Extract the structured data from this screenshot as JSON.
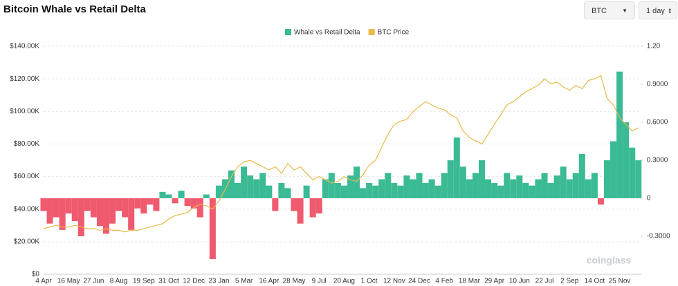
{
  "controls": {
    "symbol": "BTC",
    "interval": "1 day"
  },
  "watermark": "coinglass",
  "chart_data": {
    "type": "bar-line",
    "title": "Bitcoin Whale vs Retail Delta",
    "grid": true,
    "legend": "top",
    "categories": [
      "4 Apr",
      null,
      null,
      null,
      "16 May",
      null,
      null,
      null,
      "27 Jun",
      null,
      null,
      null,
      "8 Aug",
      null,
      null,
      null,
      "19 Sep",
      null,
      null,
      null,
      "31 Oct",
      null,
      null,
      null,
      "12 Dec",
      null,
      null,
      null,
      "23 Jan",
      null,
      null,
      null,
      "5 Mar",
      null,
      null,
      null,
      "16 Apr",
      null,
      null,
      null,
      "28 May",
      null,
      null,
      null,
      "9 Jul",
      null,
      null,
      null,
      "20 Aug",
      null,
      null,
      null,
      "1 Oct",
      null,
      null,
      null,
      "12 Nov",
      null,
      null,
      null,
      "24 Dec",
      null,
      null,
      null,
      "4 Feb",
      null,
      null,
      null,
      "18 Mar",
      null,
      null,
      null,
      "29 Apr",
      null,
      null,
      null,
      "10 Jun",
      null,
      null,
      null,
      "22 Jul",
      null,
      null,
      null,
      "2 Sep",
      null,
      null,
      null,
      "14 Oct",
      null,
      null,
      null,
      "25 Nov",
      null,
      null,
      null
    ],
    "ylim": [
      0,
      140000
    ],
    "yticks": [
      {
        "value": 0,
        "label": "$0"
      },
      {
        "value": 20000,
        "label": "$20.00K"
      },
      {
        "value": 40000,
        "label": "$40.00K"
      },
      {
        "value": 60000,
        "label": "$60.00K"
      },
      {
        "value": 80000,
        "label": "$80.00K"
      },
      {
        "value": 100000,
        "label": "$100.00K"
      },
      {
        "value": 120000,
        "label": "$120.00K"
      },
      {
        "value": 140000,
        "label": "$140.00K"
      }
    ],
    "y2lim": [
      -0.6,
      1.2
    ],
    "y2ticks": [
      {
        "value": -0.3,
        "label": "-0.3000"
      },
      0,
      {
        "value": 0.3,
        "label": "0.3000"
      },
      {
        "value": 0.6,
        "label": "0.6000"
      },
      {
        "value": 0.9,
        "label": "0.9000"
      },
      {
        "value": 1.2,
        "label": "1.20"
      }
    ],
    "series": [
      {
        "name": "Whale vs Retail Delta",
        "type": "bar",
        "axis": "y2",
        "color": "#3bbb95",
        "negative_color": "#ef5a6f",
        "values": [
          -0.1,
          -0.2,
          -0.15,
          -0.25,
          -0.12,
          -0.18,
          -0.3,
          -0.1,
          -0.15,
          -0.22,
          -0.28,
          -0.2,
          -0.1,
          -0.15,
          -0.25,
          -0.08,
          -0.12,
          -0.05,
          -0.1,
          0.05,
          0.03,
          -0.04,
          0.06,
          -0.06,
          -0.08,
          -0.15,
          0.03,
          -0.48,
          0.1,
          0.15,
          0.22,
          0.12,
          0.25,
          0.18,
          0.15,
          0.2,
          0.1,
          -0.1,
          0.12,
          0.08,
          -0.1,
          -0.2,
          0.1,
          -0.15,
          -0.12,
          0.15,
          0.2,
          0.12,
          0.1,
          0.18,
          0.25,
          0.08,
          0.12,
          0.1,
          0.15,
          0.2,
          0.12,
          0.1,
          0.18,
          0.15,
          0.2,
          0.12,
          0.15,
          0.1,
          0.2,
          0.3,
          0.48,
          0.25,
          0.15,
          0.2,
          0.3,
          0.15,
          0.12,
          0.1,
          0.2,
          0.15,
          0.18,
          0.12,
          0.1,
          0.15,
          0.2,
          0.12,
          0.18,
          0.25,
          0.15,
          0.2,
          0.35,
          0.15,
          0.2,
          -0.05,
          0.3,
          0.45,
          1.0,
          0.6,
          0.4,
          0.3
        ]
      },
      {
        "name": "BTC Price",
        "type": "line",
        "color": "#e8b94a",
        "values": [
          28000,
          29000,
          30000,
          29000,
          29000,
          30000,
          29000,
          28000,
          28000,
          27000,
          28000,
          27000,
          27000,
          26000,
          27000,
          27000,
          28000,
          29000,
          30000,
          31000,
          34000,
          36000,
          37000,
          38000,
          41000,
          43000,
          42000,
          40000,
          45000,
          52000,
          60000,
          66000,
          69000,
          70000,
          68000,
          66000,
          64000,
          66000,
          62000,
          68000,
          64000,
          66000,
          62000,
          58000,
          60000,
          58000,
          56000,
          57000,
          60000,
          58000,
          57000,
          61000,
          67000,
          70000,
          78000,
          86000,
          92000,
          94000,
          95000,
          100000,
          103000,
          106000,
          104000,
          102000,
          101000,
          98000,
          96000,
          88000,
          84000,
          82000,
          80000,
          86000,
          92000,
          98000,
          104000,
          106000,
          109000,
          112000,
          114000,
          116000,
          120000,
          117000,
          118000,
          115000,
          113000,
          116000,
          114000,
          119000,
          120000,
          122000,
          108000,
          104000,
          96000,
          92000,
          88000,
          90000
        ]
      }
    ]
  }
}
